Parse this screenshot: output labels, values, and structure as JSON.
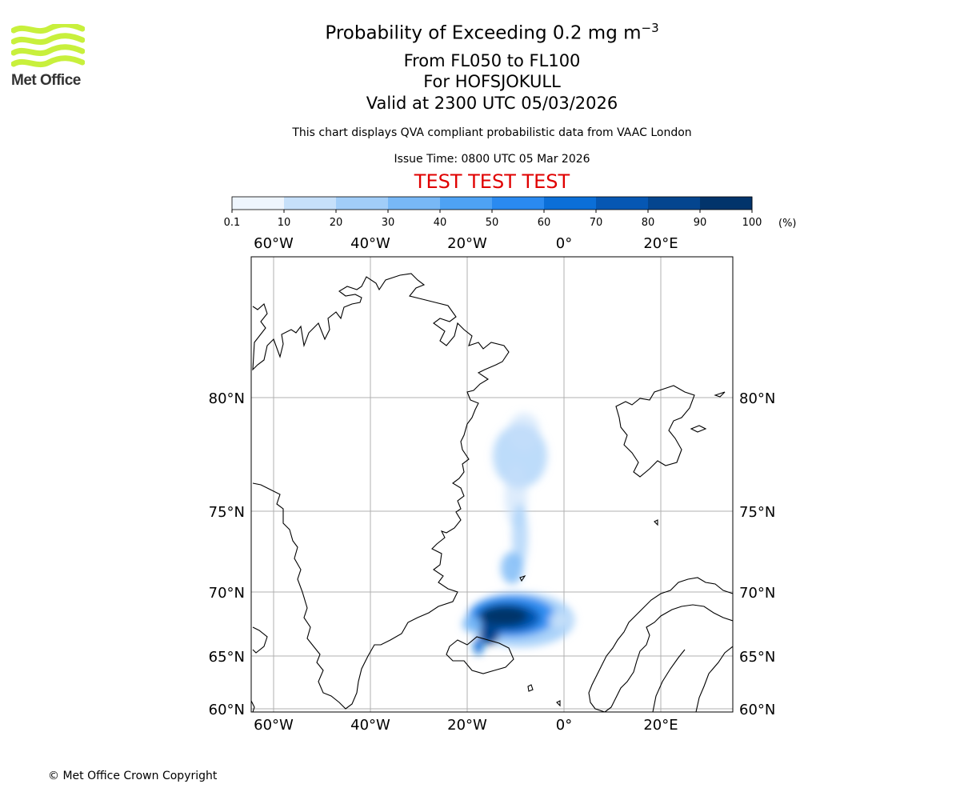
{
  "branding": {
    "logo_text": "Met Office",
    "logo_color": "#c8f03c",
    "copyright": "© Met Office Crown Copyright"
  },
  "header": {
    "title_prefix": "Probability of Exceeding 0.2 mg m",
    "title_exponent": "−3",
    "levels": "From FL050 to FL100",
    "volcano": "For HOFSJOKULL",
    "valid": "Valid at 2300 UTC 05/03/2026",
    "description": "This chart displays QVA compliant probabilistic data from VAAC London",
    "issue_time": "Issue Time: 0800 UTC 05 Mar 2026",
    "test_banner": "TEST TEST TEST",
    "test_color": "#e00000"
  },
  "colorbar": {
    "ticks": [
      "0.1",
      "10",
      "20",
      "30",
      "40",
      "50",
      "60",
      "70",
      "80",
      "90",
      "100"
    ],
    "unit": "(%)",
    "colors": [
      "#eef5fd",
      "#c6e0fa",
      "#a1cdf8",
      "#78b8f6",
      "#4ea2f4",
      "#2a8af0",
      "#0b6fd8",
      "#0657b3",
      "#04458f",
      "#02346b"
    ]
  },
  "map": {
    "lon_labels": [
      "60°W",
      "40°W",
      "20°W",
      "0°",
      "20°E"
    ],
    "lat_labels": [
      "80°N",
      "75°N",
      "70°N",
      "65°N",
      "60°N"
    ],
    "gridline_color": "#b0b0b0"
  }
}
